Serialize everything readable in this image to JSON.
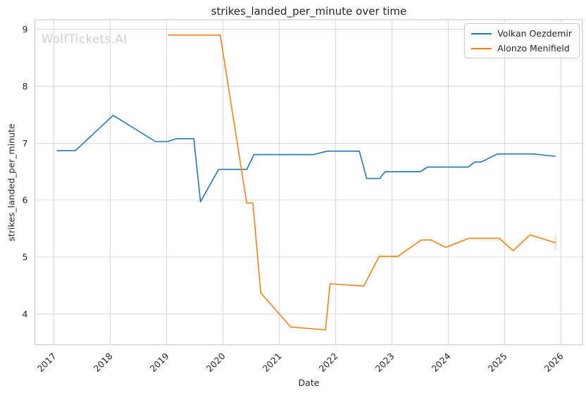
{
  "figure": {
    "watermark": "WolfTickets.AI"
  },
  "colors": {
    "series_blue": "#1f77b4",
    "series_orange": "#ff7f0e",
    "grid": "#d9d9d9",
    "spine": "#cccccc",
    "text": "#262626",
    "watermark": "#cfcfcf"
  },
  "chart_data": {
    "type": "line",
    "title": "strikes_landed_per_minute over time",
    "xlabel": "Date",
    "ylabel": "strikes_landed_per_minute",
    "xlim": [
      2016.66,
      2026.38
    ],
    "ylim": [
      3.46,
      9.17
    ],
    "x_ticks": [
      2017,
      2018,
      2019,
      2020,
      2021,
      2022,
      2023,
      2024,
      2025,
      2026
    ],
    "y_ticks": [
      4,
      5,
      6,
      7,
      8,
      9
    ],
    "grid": true,
    "legend_position": "upper right",
    "series": [
      {
        "name": "Volkan Oezdemir",
        "color": "#1f77b4",
        "points": [
          [
            2017.05,
            6.87
          ],
          [
            2017.38,
            6.87
          ],
          [
            2018.05,
            7.49
          ],
          [
            2018.8,
            7.03
          ],
          [
            2019.02,
            7.03
          ],
          [
            2019.17,
            7.08
          ],
          [
            2019.48,
            7.08
          ],
          [
            2019.6,
            5.97
          ],
          [
            2019.92,
            6.54
          ],
          [
            2020.42,
            6.54
          ],
          [
            2020.55,
            6.8
          ],
          [
            2021.6,
            6.8
          ],
          [
            2021.85,
            6.86
          ],
          [
            2022.42,
            6.86
          ],
          [
            2022.55,
            6.38
          ],
          [
            2022.78,
            6.38
          ],
          [
            2022.88,
            6.5
          ],
          [
            2023.5,
            6.5
          ],
          [
            2023.63,
            6.58
          ],
          [
            2024.35,
            6.58
          ],
          [
            2024.47,
            6.67
          ],
          [
            2024.58,
            6.67
          ],
          [
            2024.87,
            6.81
          ],
          [
            2025.5,
            6.81
          ],
          [
            2025.9,
            6.77
          ]
        ]
      },
      {
        "name": "Alonzo Menifield",
        "color": "#ff7f0e",
        "end_tick": true,
        "points": [
          [
            2019.03,
            8.9
          ],
          [
            2019.95,
            8.9
          ],
          [
            2020.42,
            5.95
          ],
          [
            2020.53,
            5.95
          ],
          [
            2020.67,
            4.37
          ],
          [
            2021.2,
            3.77
          ],
          [
            2021.82,
            3.72
          ],
          [
            2021.9,
            4.53
          ],
          [
            2022.5,
            4.49
          ],
          [
            2022.77,
            5.01
          ],
          [
            2023.1,
            5.01
          ],
          [
            2023.52,
            5.3
          ],
          [
            2023.69,
            5.3
          ],
          [
            2023.95,
            5.17
          ],
          [
            2024.37,
            5.33
          ],
          [
            2024.9,
            5.33
          ],
          [
            2025.15,
            5.11
          ],
          [
            2025.45,
            5.39
          ],
          [
            2025.9,
            5.25
          ]
        ]
      }
    ]
  }
}
